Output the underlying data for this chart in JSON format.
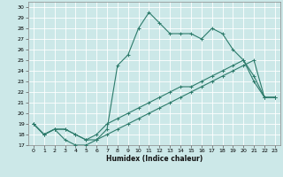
{
  "xlabel": "Humidex (Indice chaleur)",
  "xlim": [
    -0.5,
    23.5
  ],
  "ylim": [
    17,
    30.5
  ],
  "yticks": [
    17,
    18,
    19,
    20,
    21,
    22,
    23,
    24,
    25,
    26,
    27,
    28,
    29,
    30
  ],
  "xticks": [
    0,
    1,
    2,
    3,
    4,
    5,
    6,
    7,
    8,
    9,
    10,
    11,
    12,
    13,
    14,
    15,
    16,
    17,
    18,
    19,
    20,
    21,
    22,
    23
  ],
  "line_color": "#2d7b6b",
  "bg_color": "#cce8e8",
  "grid_color": "#ffffff",
  "lines": [
    {
      "x": [
        0,
        1,
        2,
        3,
        4,
        5,
        6,
        7,
        8,
        9,
        10,
        11,
        12,
        13,
        14,
        15,
        16,
        17,
        18,
        19,
        20,
        21,
        22,
        23
      ],
      "y": [
        19,
        18,
        18.5,
        17.5,
        17,
        17,
        17.5,
        18.5,
        24.5,
        25.5,
        28,
        29.5,
        28.5,
        27.5,
        27.5,
        27.5,
        27,
        28,
        27.5,
        26,
        25,
        23.5,
        21.5,
        21.5
      ]
    },
    {
      "x": [
        0,
        1,
        2,
        3,
        4,
        5,
        6,
        7,
        8,
        9,
        10,
        11,
        12,
        13,
        14,
        15,
        16,
        17,
        18,
        19,
        20,
        21,
        22,
        23
      ],
      "y": [
        19,
        18,
        18.5,
        18.5,
        18,
        17.5,
        18,
        19,
        19.5,
        20,
        20.5,
        21,
        21.5,
        22,
        22.5,
        22.5,
        23,
        23.5,
        24,
        24.5,
        25,
        23,
        21.5,
        21.5
      ]
    },
    {
      "x": [
        0,
        1,
        2,
        3,
        4,
        5,
        6,
        7,
        8,
        9,
        10,
        11,
        12,
        13,
        14,
        15,
        16,
        17,
        18,
        19,
        20,
        21,
        22,
        23
      ],
      "y": [
        19,
        18,
        18.5,
        18.5,
        18,
        17.5,
        17.5,
        18,
        18.5,
        19,
        19.5,
        20,
        20.5,
        21,
        21.5,
        22,
        22.5,
        23,
        23.5,
        24,
        24.5,
        25,
        21.5,
        21.5
      ]
    }
  ]
}
